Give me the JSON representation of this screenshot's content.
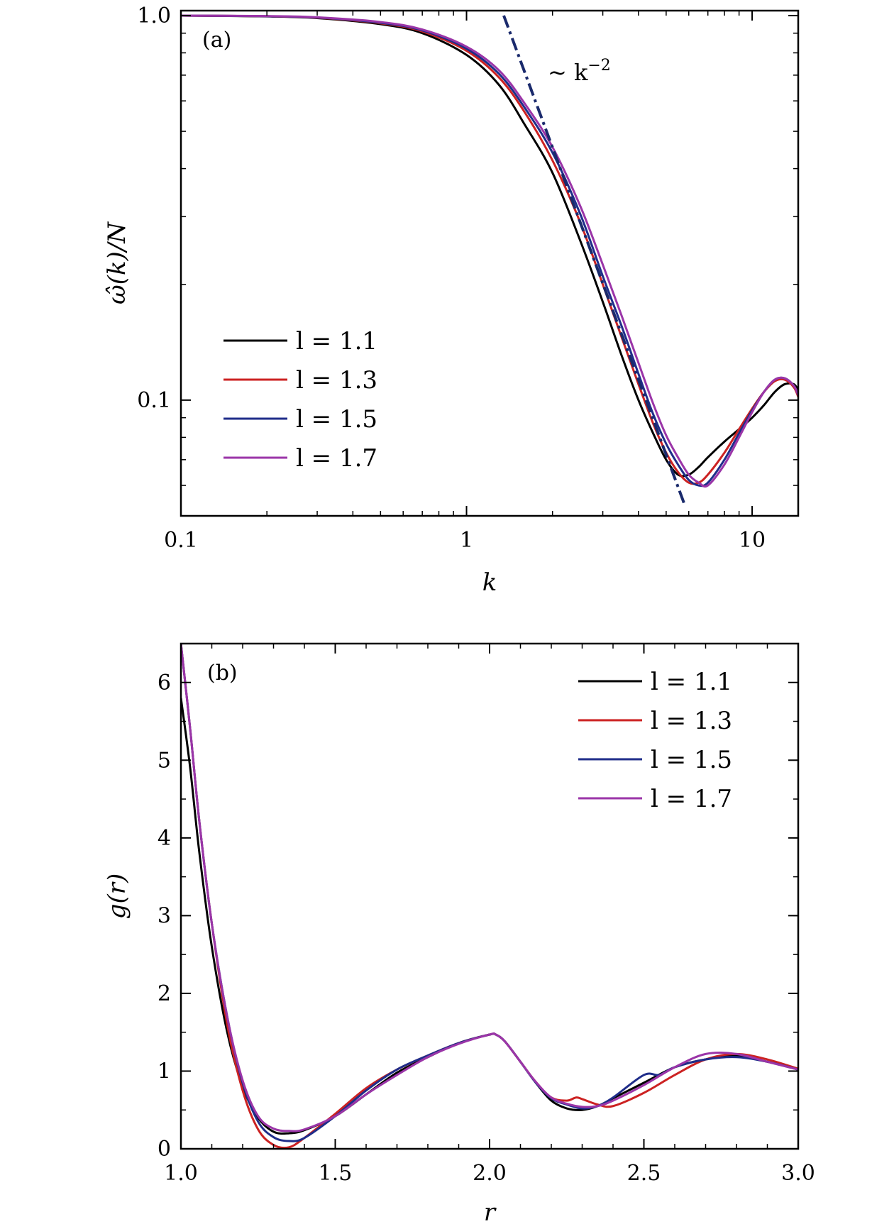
{
  "figure": {
    "panels": [
      "a",
      "b"
    ]
  },
  "chart_data": [
    {
      "type": "line",
      "panel_label": "(a)",
      "xlabel": "k",
      "ylabel": "ω̂(k)/N",
      "xscale": "log",
      "yscale": "log",
      "xlim": [
        0.1,
        14.5
      ],
      "ylim": [
        0.05,
        1.03
      ],
      "xticks": [
        {
          "value": 0.1,
          "label": "0.1"
        },
        {
          "value": 1,
          "label": "1"
        },
        {
          "value": 10,
          "label": "10"
        }
      ],
      "yticks": [
        {
          "value": 0.1,
          "label": "0.1"
        },
        {
          "value": 1.0,
          "label": "1.0"
        }
      ],
      "legend_position": "lower-left",
      "annotation": {
        "text": "~ k",
        "superscript": "−2",
        "line": {
          "style": "dash-dot",
          "color": "#1a2a6c",
          "x": [
            1.35,
            5.8
          ],
          "y": [
            1.0,
            0.0535
          ]
        }
      },
      "series": [
        {
          "name": "l = 1.1",
          "color": "#000000",
          "x": [
            0.1,
            0.2,
            0.3,
            0.5,
            0.7,
            1.0,
            1.3,
            1.6,
            2.0,
            2.5,
            3.0,
            3.5,
            4.0,
            4.5,
            5.0,
            5.5,
            6.0,
            6.5,
            7.0,
            8.0,
            9.0,
            10.0,
            11.0,
            12.0,
            13.0,
            14.0,
            14.5
          ],
          "y": [
            1.0,
            0.995,
            0.985,
            0.95,
            0.9,
            0.79,
            0.66,
            0.52,
            0.39,
            0.26,
            0.18,
            0.13,
            0.1,
            0.082,
            0.07,
            0.064,
            0.064,
            0.067,
            0.071,
            0.078,
            0.084,
            0.09,
            0.097,
            0.105,
            0.11,
            0.11,
            0.106
          ]
        },
        {
          "name": "l = 1.3",
          "color": "#cc2222",
          "x": [
            0.1,
            0.2,
            0.3,
            0.5,
            0.7,
            1.0,
            1.3,
            1.6,
            2.0,
            2.5,
            3.0,
            3.5,
            4.0,
            4.5,
            5.0,
            5.5,
            6.0,
            6.5,
            7.0,
            8.0,
            9.0,
            10.0,
            11.0,
            12.0,
            13.0,
            14.0,
            14.5
          ],
          "y": [
            1.0,
            0.996,
            0.987,
            0.955,
            0.91,
            0.81,
            0.69,
            0.56,
            0.42,
            0.29,
            0.2,
            0.145,
            0.11,
            0.087,
            0.073,
            0.065,
            0.061,
            0.061,
            0.064,
            0.073,
            0.084,
            0.095,
            0.105,
            0.112,
            0.113,
            0.108,
            0.102
          ]
        },
        {
          "name": "l = 1.5",
          "color": "#1f2d8a",
          "x": [
            0.1,
            0.2,
            0.3,
            0.5,
            0.7,
            1.0,
            1.3,
            1.6,
            2.0,
            2.5,
            3.0,
            3.5,
            4.0,
            4.5,
            5.0,
            5.5,
            6.0,
            6.5,
            7.0,
            8.0,
            9.0,
            10.0,
            11.0,
            12.0,
            13.0,
            14.0,
            14.5
          ],
          "y": [
            1.0,
            0.996,
            0.988,
            0.958,
            0.915,
            0.82,
            0.705,
            0.575,
            0.44,
            0.305,
            0.21,
            0.155,
            0.117,
            0.092,
            0.077,
            0.068,
            0.062,
            0.06,
            0.061,
            0.07,
            0.082,
            0.094,
            0.105,
            0.113,
            0.114,
            0.109,
            0.103
          ]
        },
        {
          "name": "l = 1.7",
          "color": "#9b35a8",
          "x": [
            0.1,
            0.2,
            0.3,
            0.5,
            0.7,
            1.0,
            1.3,
            1.6,
            2.0,
            2.5,
            3.0,
            3.5,
            4.0,
            4.5,
            5.0,
            5.5,
            6.0,
            6.5,
            7.0,
            8.0,
            9.0,
            10.0,
            11.0,
            12.0,
            13.0,
            14.0,
            14.5
          ],
          "y": [
            1.0,
            0.997,
            0.99,
            0.962,
            0.92,
            0.83,
            0.72,
            0.59,
            0.455,
            0.32,
            0.225,
            0.165,
            0.125,
            0.098,
            0.081,
            0.071,
            0.064,
            0.061,
            0.06,
            0.068,
            0.08,
            0.093,
            0.105,
            0.113,
            0.114,
            0.109,
            0.103
          ]
        }
      ]
    },
    {
      "type": "line",
      "panel_label": "(b)",
      "xlabel": "r",
      "ylabel": "g(r)",
      "xscale": "linear",
      "yscale": "linear",
      "xlim": [
        1.0,
        3.0
      ],
      "ylim": [
        0,
        6.5
      ],
      "xticks": [
        {
          "value": 1.0,
          "label": "1.0"
        },
        {
          "value": 1.5,
          "label": "1.5"
        },
        {
          "value": 2.0,
          "label": "2.0"
        },
        {
          "value": 2.5,
          "label": "2.5"
        },
        {
          "value": 3.0,
          "label": "3.0"
        }
      ],
      "yticks": [
        {
          "value": 0,
          "label": "0"
        },
        {
          "value": 1,
          "label": "1"
        },
        {
          "value": 2,
          "label": "2"
        },
        {
          "value": 3,
          "label": "3"
        },
        {
          "value": 4,
          "label": "4"
        },
        {
          "value": 5,
          "label": "5"
        },
        {
          "value": 6,
          "label": "6"
        }
      ],
      "legend_position": "top-right",
      "series": [
        {
          "name": "l = 1.1",
          "color": "#000000",
          "x": [
            1.0,
            1.03,
            1.06,
            1.1,
            1.15,
            1.2,
            1.25,
            1.3,
            1.35,
            1.4,
            1.5,
            1.6,
            1.7,
            1.8,
            1.9,
            2.0,
            2.02,
            2.05,
            2.1,
            2.15,
            2.2,
            2.25,
            2.3,
            2.35,
            2.4,
            2.5,
            2.6,
            2.7,
            2.8,
            2.9,
            3.0
          ],
          "y": [
            5.8,
            4.9,
            3.8,
            2.6,
            1.5,
            0.8,
            0.4,
            0.22,
            0.2,
            0.24,
            0.42,
            0.7,
            0.98,
            1.18,
            1.36,
            1.47,
            1.47,
            1.38,
            1.12,
            0.85,
            0.62,
            0.52,
            0.5,
            0.55,
            0.65,
            0.85,
            1.05,
            1.15,
            1.2,
            1.12,
            1.02
          ]
        },
        {
          "name": "l = 1.3",
          "color": "#cc2222",
          "x": [
            1.0,
            1.03,
            1.06,
            1.1,
            1.15,
            1.2,
            1.25,
            1.3,
            1.35,
            1.4,
            1.5,
            1.6,
            1.7,
            1.8,
            1.9,
            2.0,
            2.02,
            2.05,
            2.1,
            2.15,
            2.2,
            2.25,
            2.28,
            2.3,
            2.35,
            2.4,
            2.5,
            2.6,
            2.7,
            2.8,
            2.9,
            3.0
          ],
          "y": [
            6.5,
            5.4,
            4.2,
            2.9,
            1.6,
            0.75,
            0.25,
            0.05,
            0.02,
            0.14,
            0.45,
            0.78,
            1.02,
            1.2,
            1.36,
            1.47,
            1.47,
            1.38,
            1.12,
            0.86,
            0.66,
            0.62,
            0.66,
            0.64,
            0.57,
            0.55,
            0.72,
            0.95,
            1.15,
            1.22,
            1.15,
            1.03
          ]
        },
        {
          "name": "l = 1.5",
          "color": "#1f2d8a",
          "x": [
            1.0,
            1.03,
            1.06,
            1.1,
            1.15,
            1.2,
            1.25,
            1.3,
            1.35,
            1.4,
            1.5,
            1.6,
            1.7,
            1.8,
            1.9,
            2.0,
            2.02,
            2.05,
            2.1,
            2.15,
            2.2,
            2.25,
            2.3,
            2.35,
            2.4,
            2.5,
            2.55,
            2.6,
            2.7,
            2.8,
            2.9,
            3.0
          ],
          "y": [
            6.5,
            5.4,
            4.2,
            2.9,
            1.7,
            0.85,
            0.35,
            0.15,
            0.1,
            0.14,
            0.42,
            0.75,
            1.02,
            1.2,
            1.36,
            1.47,
            1.47,
            1.38,
            1.12,
            0.85,
            0.65,
            0.57,
            0.52,
            0.55,
            0.66,
            0.95,
            0.95,
            1.05,
            1.15,
            1.18,
            1.12,
            1.02
          ]
        },
        {
          "name": "l = 1.7",
          "color": "#9b35a8",
          "x": [
            1.0,
            1.03,
            1.06,
            1.1,
            1.15,
            1.2,
            1.25,
            1.3,
            1.35,
            1.4,
            1.5,
            1.6,
            1.7,
            1.8,
            1.9,
            2.0,
            2.02,
            2.05,
            2.1,
            2.15,
            2.2,
            2.25,
            2.3,
            2.35,
            2.4,
            2.5,
            2.6,
            2.7,
            2.8,
            2.9,
            3.0
          ],
          "y": [
            6.5,
            5.4,
            4.2,
            2.9,
            1.7,
            0.88,
            0.42,
            0.26,
            0.23,
            0.25,
            0.42,
            0.7,
            0.95,
            1.18,
            1.35,
            1.47,
            1.47,
            1.38,
            1.12,
            0.86,
            0.66,
            0.58,
            0.54,
            0.55,
            0.62,
            0.82,
            1.05,
            1.22,
            1.22,
            1.12,
            1.02
          ]
        }
      ]
    }
  ]
}
